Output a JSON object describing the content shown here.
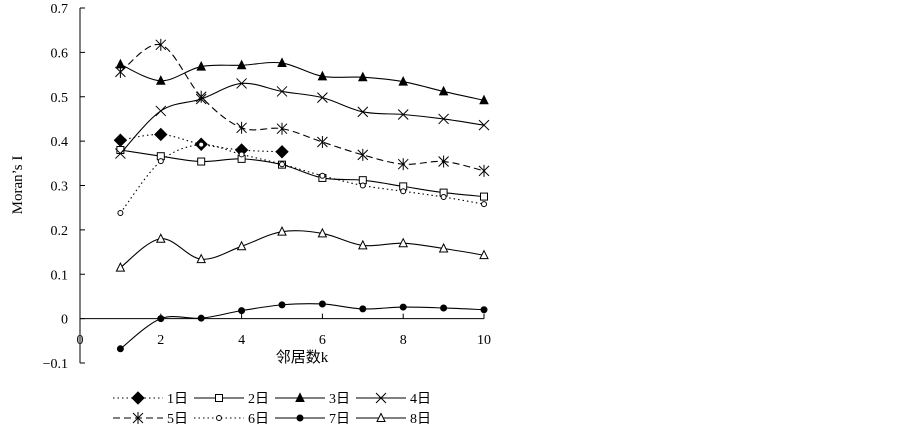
{
  "chart_data": {
    "type": "line",
    "title": "",
    "xlabel": "邻居数k",
    "ylabel": "Moran’s I",
    "xlim": [
      0,
      10
    ],
    "ylim": [
      -0.1,
      0.7
    ],
    "x_ticks": [
      "0",
      "2",
      "4",
      "6",
      "8",
      "10"
    ],
    "y_ticks": [
      "−0.1",
      "0",
      "0.1",
      "0.2",
      "0.3",
      "0.4",
      "0.5",
      "0.6",
      "0.7"
    ],
    "grid": false,
    "legend_position": "bottom",
    "x": [
      1,
      2,
      3,
      4,
      5,
      6,
      7,
      8,
      9,
      10
    ],
    "series": [
      {
        "name": "1日",
        "values": [
          0.402,
          0.415,
          0.393,
          0.38,
          0.376,
          null,
          null,
          null,
          null,
          null
        ],
        "marker": "diamond-filled",
        "dash": "dot"
      },
      {
        "name": "2日",
        "values": [
          0.38,
          0.366,
          0.354,
          0.36,
          0.347,
          0.317,
          0.312,
          0.298,
          0.284,
          0.275
        ],
        "marker": "square-open",
        "dash": "solid"
      },
      {
        "name": "3日",
        "values": [
          0.573,
          0.536,
          0.568,
          0.571,
          0.576,
          0.546,
          0.544,
          0.534,
          0.512,
          0.492
        ],
        "marker": "triangle-filled",
        "dash": "solid"
      },
      {
        "name": "4日",
        "values": [
          0.372,
          0.468,
          0.495,
          0.53,
          0.512,
          0.498,
          0.466,
          0.46,
          0.45,
          0.436
        ],
        "marker": "x",
        "dash": "solid"
      },
      {
        "name": "5日",
        "values": [
          0.556,
          0.617,
          0.5,
          0.43,
          0.428,
          0.398,
          0.369,
          0.348,
          0.354,
          0.333
        ],
        "marker": "asterisk",
        "dash": "dash"
      },
      {
        "name": "6日",
        "values": [
          0.238,
          0.355,
          0.392,
          0.37,
          0.348,
          0.322,
          0.3,
          0.287,
          0.274,
          0.258
        ],
        "marker": "circle-open",
        "dash": "dot"
      },
      {
        "name": "7日",
        "values": [
          -0.068,
          0.0,
          0.001,
          0.018,
          0.031,
          0.033,
          0.022,
          0.026,
          0.024,
          0.02
        ],
        "marker": "circle-filled",
        "dash": "solid"
      },
      {
        "name": "8日",
        "values": [
          0.115,
          0.18,
          0.134,
          0.163,
          0.196,
          0.192,
          0.165,
          0.17,
          0.158,
          0.143
        ],
        "marker": "triangle-open",
        "dash": "solid"
      }
    ]
  }
}
